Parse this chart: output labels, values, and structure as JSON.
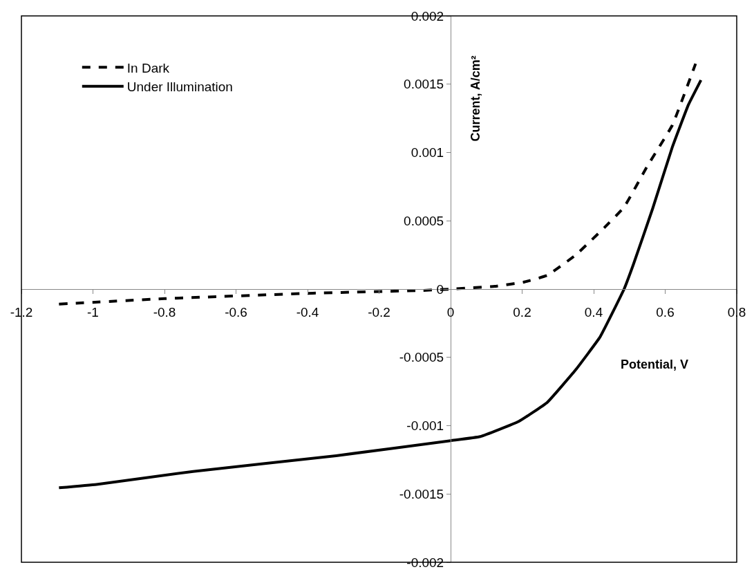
{
  "chart_data": {
    "type": "line",
    "xlabel": "Potential, V",
    "ylabel": "Current, A/cm²",
    "xlim": [
      -1.2,
      0.8
    ],
    "xticks": [
      -1.2,
      -1,
      -0.8,
      -0.6,
      -0.4,
      -0.2,
      0,
      0.2,
      0.4,
      0.6,
      0.8
    ],
    "ylim": [
      -0.002,
      0.002
    ],
    "yticks": [
      -0.002,
      -0.0015,
      -0.001,
      -0.0005,
      0,
      0.0005,
      0.001,
      0.0015,
      0.002
    ],
    "legend": "top left",
    "marker": "none",
    "series": [
      {
        "name": "In Dark",
        "color": "#000000",
        "line_style": "dashed",
        "x": [
          -1.095,
          -0.8,
          -0.385,
          -0.08,
          0,
          0.123,
          0.203,
          0.27,
          0.35,
          0.43,
          0.485,
          0.55,
          0.62,
          0.685
        ],
        "values": [
          -0.00011,
          -7e-05,
          -3e-05,
          -1e-05,
          0,
          2e-05,
          5e-05,
          0.0001,
          0.00025,
          0.00045,
          0.0006,
          0.0009,
          0.0012,
          0.00165
        ]
      },
      {
        "name": "Under Illumination",
        "color": "#000000",
        "line_style": "solid",
        "x": [
          -1.095,
          -0.99,
          -0.72,
          -0.32,
          0,
          0.083,
          0.19,
          0.27,
          0.35,
          0.418,
          0.485,
          0.511,
          0.565,
          0.62,
          0.665,
          0.7
        ],
        "values": [
          -0.001455,
          -0.00143,
          -0.001335,
          -0.00122,
          -0.00111,
          -0.00108,
          -0.00097,
          -0.00083,
          -0.00059,
          -0.00035,
          0,
          0.00018,
          0.00059,
          0.00104,
          0.00135,
          0.00153
        ]
      }
    ]
  }
}
